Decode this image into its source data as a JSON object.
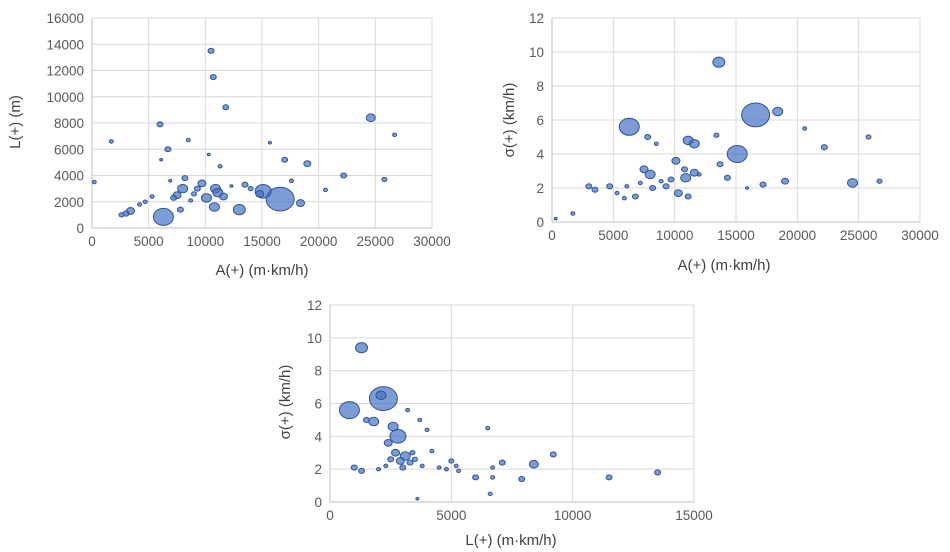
{
  "chart_data": [
    {
      "type": "scatter",
      "variant": "bubble",
      "xlabel": "A(+) (m·km/h)",
      "ylabel": "L(+) (m)",
      "xlim": [
        0,
        30000
      ],
      "ylim": [
        0,
        16000
      ],
      "xticks": [
        0,
        5000,
        10000,
        15000,
        20000,
        25000,
        30000
      ],
      "yticks": [
        0,
        2000,
        4000,
        6000,
        8000,
        10000,
        12000,
        14000,
        16000
      ],
      "grid": true,
      "color": "#4472c4",
      "points": [
        {
          "x": 200,
          "y": 3500,
          "r": 2
        },
        {
          "x": 1700,
          "y": 6600,
          "r": 2
        },
        {
          "x": 2600,
          "y": 1000,
          "r": 2.5
        },
        {
          "x": 3000,
          "y": 1100,
          "r": 3
        },
        {
          "x": 3400,
          "y": 1300,
          "r": 4
        },
        {
          "x": 4200,
          "y": 1800,
          "r": 2
        },
        {
          "x": 4700,
          "y": 2000,
          "r": 2
        },
        {
          "x": 5300,
          "y": 2400,
          "r": 2
        },
        {
          "x": 6000,
          "y": 7900,
          "r": 3
        },
        {
          "x": 6100,
          "y": 5200,
          "r": 1.5
        },
        {
          "x": 6300,
          "y": 850,
          "r": 10
        },
        {
          "x": 6700,
          "y": 6000,
          "r": 3
        },
        {
          "x": 6900,
          "y": 3600,
          "r": 1.5
        },
        {
          "x": 7200,
          "y": 2300,
          "r": 3
        },
        {
          "x": 7500,
          "y": 2500,
          "r": 4
        },
        {
          "x": 7800,
          "y": 1400,
          "r": 3
        },
        {
          "x": 8000,
          "y": 3000,
          "r": 5
        },
        {
          "x": 8200,
          "y": 3800,
          "r": 3
        },
        {
          "x": 8500,
          "y": 6700,
          "r": 2
        },
        {
          "x": 8700,
          "y": 2100,
          "r": 2
        },
        {
          "x": 9000,
          "y": 2600,
          "r": 2.5
        },
        {
          "x": 9300,
          "y": 3000,
          "r": 3
        },
        {
          "x": 9700,
          "y": 3400,
          "r": 4
        },
        {
          "x": 10100,
          "y": 2300,
          "r": 5
        },
        {
          "x": 10300,
          "y": 5600,
          "r": 1.5
        },
        {
          "x": 10500,
          "y": 13500,
          "r": 3
        },
        {
          "x": 10700,
          "y": 11500,
          "r": 3
        },
        {
          "x": 10800,
          "y": 1600,
          "r": 5
        },
        {
          "x": 10900,
          "y": 3000,
          "r": 5
        },
        {
          "x": 11100,
          "y": 2700,
          "r": 5
        },
        {
          "x": 11300,
          "y": 4700,
          "r": 2
        },
        {
          "x": 11600,
          "y": 2400,
          "r": 4
        },
        {
          "x": 11800,
          "y": 9200,
          "r": 3
        },
        {
          "x": 12300,
          "y": 3200,
          "r": 1.5
        },
        {
          "x": 13000,
          "y": 1400,
          "r": 6
        },
        {
          "x": 13500,
          "y": 3300,
          "r": 3
        },
        {
          "x": 14000,
          "y": 3000,
          "r": 2.5
        },
        {
          "x": 14800,
          "y": 2600,
          "r": 4
        },
        {
          "x": 15100,
          "y": 2800,
          "r": 8
        },
        {
          "x": 15700,
          "y": 6500,
          "r": 1.5
        },
        {
          "x": 16600,
          "y": 2200,
          "r": 14
        },
        {
          "x": 17000,
          "y": 5200,
          "r": 3
        },
        {
          "x": 17600,
          "y": 3600,
          "r": 2
        },
        {
          "x": 18400,
          "y": 1900,
          "r": 4
        },
        {
          "x": 19000,
          "y": 4900,
          "r": 3.5
        },
        {
          "x": 20600,
          "y": 2900,
          "r": 2
        },
        {
          "x": 22200,
          "y": 4000,
          "r": 3
        },
        {
          "x": 24600,
          "y": 8400,
          "r": 4.5
        },
        {
          "x": 25800,
          "y": 3700,
          "r": 2.5
        },
        {
          "x": 26700,
          "y": 7100,
          "r": 2
        }
      ]
    },
    {
      "type": "scatter",
      "variant": "bubble",
      "xlabel": "A(+) (m·km/h)",
      "ylabel": "σ(+) (km/h)",
      "xlim": [
        0,
        30000
      ],
      "ylim": [
        0,
        12
      ],
      "xticks": [
        0,
        5000,
        10000,
        15000,
        20000,
        25000,
        30000
      ],
      "yticks": [
        0,
        2,
        4,
        6,
        8,
        10,
        12
      ],
      "grid": true,
      "color": "#4472c4",
      "points": [
        {
          "x": 300,
          "y": 0.2,
          "r": 1.5
        },
        {
          "x": 1700,
          "y": 0.5,
          "r": 2
        },
        {
          "x": 3000,
          "y": 2.1,
          "r": 3
        },
        {
          "x": 3500,
          "y": 1.9,
          "r": 3
        },
        {
          "x": 4700,
          "y": 2.1,
          "r": 3
        },
        {
          "x": 5300,
          "y": 1.7,
          "r": 2
        },
        {
          "x": 5900,
          "y": 1.4,
          "r": 2
        },
        {
          "x": 6100,
          "y": 2.1,
          "r": 2
        },
        {
          "x": 6300,
          "y": 5.6,
          "r": 10
        },
        {
          "x": 6800,
          "y": 1.5,
          "r": 3
        },
        {
          "x": 7200,
          "y": 2.3,
          "r": 2
        },
        {
          "x": 7500,
          "y": 3.1,
          "r": 4
        },
        {
          "x": 7800,
          "y": 5.0,
          "r": 3
        },
        {
          "x": 8000,
          "y": 2.8,
          "r": 5
        },
        {
          "x": 8200,
          "y": 2.0,
          "r": 3
        },
        {
          "x": 8500,
          "y": 4.6,
          "r": 2
        },
        {
          "x": 8900,
          "y": 2.4,
          "r": 2
        },
        {
          "x": 9300,
          "y": 2.1,
          "r": 3
        },
        {
          "x": 9700,
          "y": 2.5,
          "r": 3
        },
        {
          "x": 10100,
          "y": 3.6,
          "r": 4
        },
        {
          "x": 10300,
          "y": 1.7,
          "r": 4
        },
        {
          "x": 10800,
          "y": 3.1,
          "r": 3
        },
        {
          "x": 10900,
          "y": 2.6,
          "r": 5
        },
        {
          "x": 11100,
          "y": 1.5,
          "r": 3
        },
        {
          "x": 11100,
          "y": 4.8,
          "r": 5
        },
        {
          "x": 11600,
          "y": 4.6,
          "r": 5
        },
        {
          "x": 11600,
          "y": 2.9,
          "r": 4
        },
        {
          "x": 12000,
          "y": 2.8,
          "r": 2
        },
        {
          "x": 13400,
          "y": 5.1,
          "r": 2.5
        },
        {
          "x": 13600,
          "y": 9.4,
          "r": 6
        },
        {
          "x": 13700,
          "y": 3.4,
          "r": 3
        },
        {
          "x": 14300,
          "y": 2.6,
          "r": 3
        },
        {
          "x": 15100,
          "y": 4.0,
          "r": 10
        },
        {
          "x": 15900,
          "y": 2.0,
          "r": 1.5
        },
        {
          "x": 16600,
          "y": 6.3,
          "r": 14
        },
        {
          "x": 17200,
          "y": 2.2,
          "r": 3
        },
        {
          "x": 18400,
          "y": 6.5,
          "r": 5
        },
        {
          "x": 19000,
          "y": 2.4,
          "r": 3.5
        },
        {
          "x": 20600,
          "y": 5.5,
          "r": 2
        },
        {
          "x": 22200,
          "y": 4.4,
          "r": 3
        },
        {
          "x": 24500,
          "y": 2.3,
          "r": 5
        },
        {
          "x": 25800,
          "y": 5.0,
          "r": 2.5
        },
        {
          "x": 26700,
          "y": 2.4,
          "r": 2.5
        }
      ]
    },
    {
      "type": "scatter",
      "variant": "bubble",
      "xlabel": "L(+) (m·km/h)",
      "ylabel": "σ(+) (km/h)",
      "xlim": [
        0,
        15000
      ],
      "ylim": [
        0,
        12
      ],
      "xticks": [
        0,
        5000,
        10000,
        15000
      ],
      "yticks": [
        0,
        2,
        4,
        6,
        8,
        10,
        12
      ],
      "grid": true,
      "color": "#4472c4",
      "points": [
        {
          "x": 800,
          "y": 5.6,
          "r": 10
        },
        {
          "x": 1000,
          "y": 2.1,
          "r": 3
        },
        {
          "x": 1300,
          "y": 1.9,
          "r": 3
        },
        {
          "x": 1300,
          "y": 9.4,
          "r": 6
        },
        {
          "x": 1500,
          "y": 5.0,
          "r": 3
        },
        {
          "x": 1800,
          "y": 4.9,
          "r": 5
        },
        {
          "x": 2000,
          "y": 2.0,
          "r": 2
        },
        {
          "x": 2100,
          "y": 6.5,
          "r": 5
        },
        {
          "x": 2200,
          "y": 6.3,
          "r": 14
        },
        {
          "x": 2300,
          "y": 2.2,
          "r": 2
        },
        {
          "x": 2400,
          "y": 3.6,
          "r": 4
        },
        {
          "x": 2500,
          "y": 2.6,
          "r": 3
        },
        {
          "x": 2600,
          "y": 4.6,
          "r": 5
        },
        {
          "x": 2700,
          "y": 3.0,
          "r": 4
        },
        {
          "x": 2800,
          "y": 4.0,
          "r": 8
        },
        {
          "x": 2900,
          "y": 2.5,
          "r": 4
        },
        {
          "x": 3000,
          "y": 2.1,
          "r": 3
        },
        {
          "x": 3100,
          "y": 2.8,
          "r": 5
        },
        {
          "x": 3200,
          "y": 5.6,
          "r": 2
        },
        {
          "x": 3300,
          "y": 2.4,
          "r": 3
        },
        {
          "x": 3400,
          "y": 3.0,
          "r": 2.5
        },
        {
          "x": 3500,
          "y": 2.6,
          "r": 2.5
        },
        {
          "x": 3600,
          "y": 0.2,
          "r": 1.5
        },
        {
          "x": 3700,
          "y": 5.0,
          "r": 2
        },
        {
          "x": 3800,
          "y": 2.2,
          "r": 2
        },
        {
          "x": 4000,
          "y": 4.4,
          "r": 2
        },
        {
          "x": 4200,
          "y": 3.1,
          "r": 2
        },
        {
          "x": 4500,
          "y": 2.1,
          "r": 2
        },
        {
          "x": 4800,
          "y": 2.0,
          "r": 2
        },
        {
          "x": 5000,
          "y": 2.5,
          "r": 2.5
        },
        {
          "x": 5200,
          "y": 2.2,
          "r": 2
        },
        {
          "x": 5300,
          "y": 1.9,
          "r": 2
        },
        {
          "x": 6000,
          "y": 1.5,
          "r": 3
        },
        {
          "x": 6500,
          "y": 4.5,
          "r": 2
        },
        {
          "x": 6600,
          "y": 0.5,
          "r": 2
        },
        {
          "x": 6700,
          "y": 2.1,
          "r": 2
        },
        {
          "x": 6700,
          "y": 1.5,
          "r": 2
        },
        {
          "x": 7100,
          "y": 2.4,
          "r": 3
        },
        {
          "x": 7900,
          "y": 1.4,
          "r": 3
        },
        {
          "x": 8400,
          "y": 2.3,
          "r": 4.5
        },
        {
          "x": 9200,
          "y": 2.9,
          "r": 3
        },
        {
          "x": 11500,
          "y": 1.5,
          "r": 3
        },
        {
          "x": 13500,
          "y": 1.8,
          "r": 3
        }
      ]
    }
  ]
}
